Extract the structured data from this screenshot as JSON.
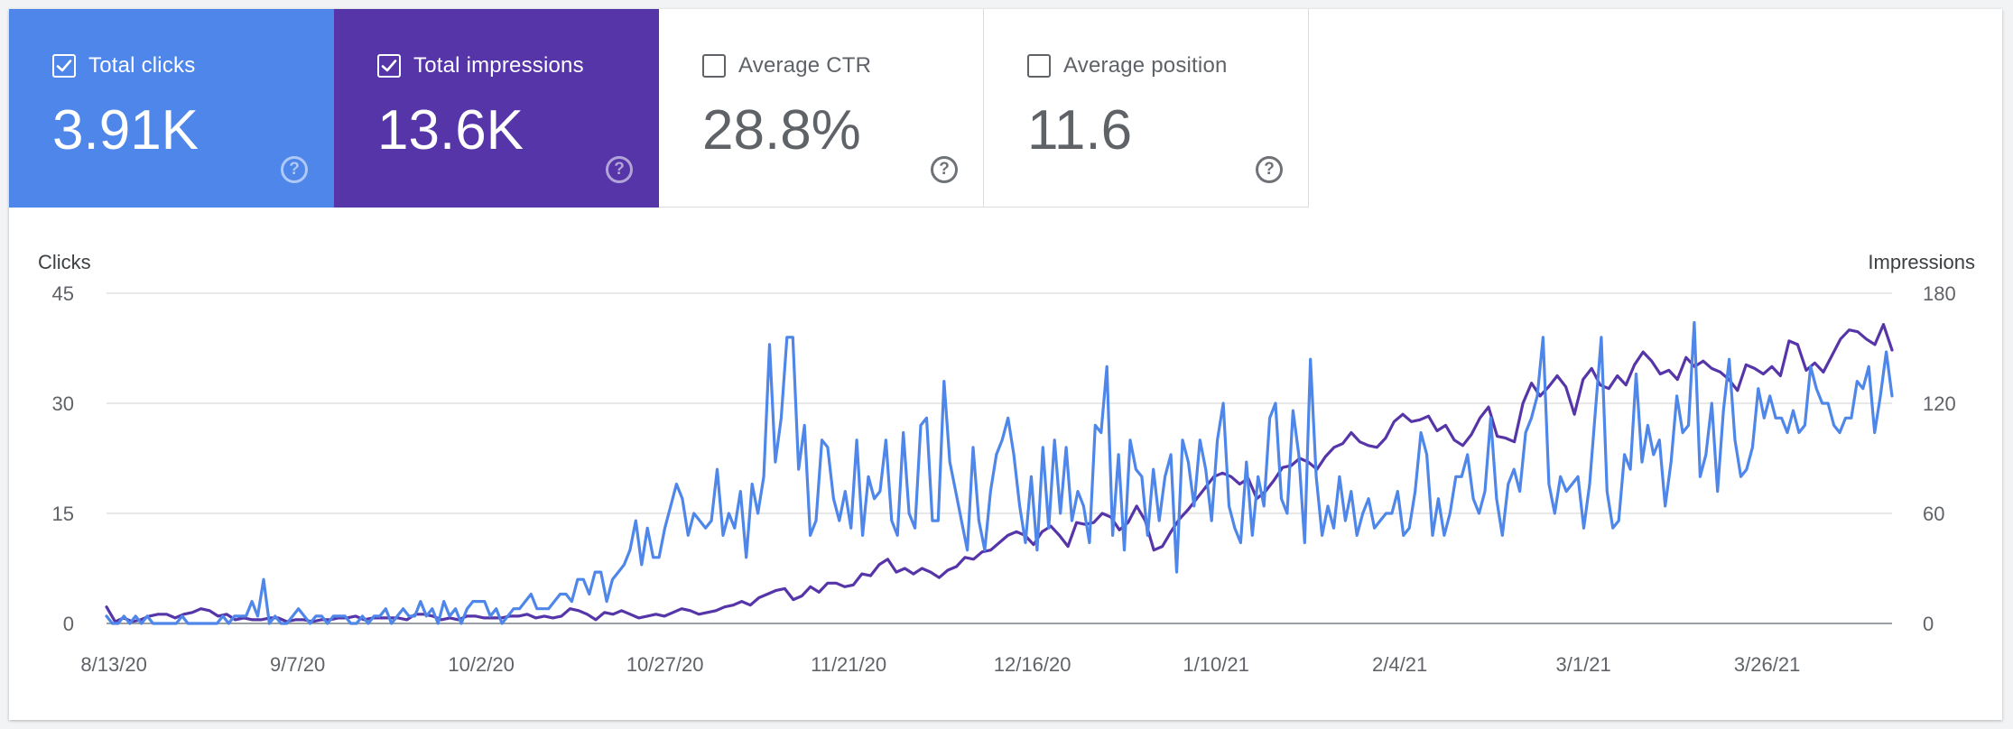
{
  "cards": [
    {
      "label": "Total clicks",
      "value": "3.91K",
      "checked": true
    },
    {
      "label": "Total impressions",
      "value": "13.6K",
      "checked": true
    },
    {
      "label": "Average CTR",
      "value": "28.8%",
      "checked": false
    },
    {
      "label": "Average position",
      "value": "11.6",
      "checked": false
    }
  ],
  "colors": {
    "clicks": "#4e86e9",
    "impressions": "#5635a9",
    "grid": "#e0e0e0",
    "baseline": "#9aa0a6"
  },
  "icons": {
    "checkbox": "check-icon",
    "help": "help-circle-icon"
  },
  "chart_data": {
    "type": "line",
    "xlabels": [
      "8/13/20",
      "9/7/20",
      "10/2/20",
      "10/27/20",
      "11/21/20",
      "12/16/20",
      "1/10/21",
      "2/4/21",
      "3/1/21",
      "3/26/21"
    ],
    "ylabel_left": "Clicks",
    "ylabel_right": "Impressions",
    "yticks_left": [
      "0",
      "15",
      "30",
      "45"
    ],
    "yticks_right": [
      "0",
      "60",
      "120",
      "180"
    ],
    "ylim_left": [
      0,
      45
    ],
    "ylim_right": [
      0,
      180
    ],
    "grid": true,
    "date_range": [
      "8/13/20",
      "4/13/21"
    ],
    "series": [
      {
        "name": "Total clicks",
        "axis": "left",
        "values": [
          1,
          0,
          0,
          1,
          0,
          1,
          0,
          1,
          0,
          0,
          0,
          0,
          0,
          1,
          0,
          0,
          0,
          0,
          0,
          0,
          1,
          0,
          1,
          1,
          1,
          3,
          1,
          6,
          0,
          1,
          0,
          0,
          1,
          2,
          1,
          0,
          1,
          1,
          0,
          1,
          1,
          1,
          0,
          0,
          1,
          0,
          1,
          1,
          2,
          0,
          1,
          2,
          1,
          1,
          3,
          1,
          2,
          0,
          3,
          1,
          2,
          0,
          2,
          3,
          3,
          3,
          1,
          2,
          0,
          1,
          2,
          2,
          3,
          4,
          2,
          2,
          2,
          3,
          4,
          4,
          3,
          6,
          6,
          4,
          7,
          7,
          3,
          6,
          7,
          8,
          10,
          14,
          8,
          13,
          9,
          9,
          13,
          16,
          19,
          17,
          12,
          15,
          14,
          13,
          14,
          21,
          12,
          15,
          13,
          18,
          9,
          19,
          15,
          20,
          38,
          22,
          28,
          39,
          39,
          21,
          27,
          12,
          14,
          25,
          24,
          17,
          14,
          18,
          13,
          25,
          12,
          20,
          17,
          18,
          25,
          14,
          12,
          26,
          15,
          13,
          27,
          28,
          14,
          14,
          33,
          22,
          18,
          14,
          10,
          24,
          14,
          10,
          18,
          23,
          25,
          28,
          23,
          16,
          11,
          20,
          10,
          24,
          13,
          25,
          15,
          24,
          14,
          18,
          16,
          11,
          27,
          26,
          35,
          12,
          23,
          10,
          25,
          21,
          20,
          12,
          21,
          14,
          20,
          23,
          7,
          25,
          22,
          16,
          25,
          21,
          14,
          25,
          30,
          16,
          13,
          11,
          22,
          12,
          20,
          16,
          28,
          30,
          17,
          15,
          29,
          23,
          11,
          36,
          20,
          12,
          16,
          13,
          20,
          14,
          18,
          12,
          15,
          17,
          13,
          14,
          15,
          15,
          18,
          12,
          13,
          18,
          26,
          23,
          12,
          17,
          12,
          15,
          20,
          20,
          23,
          17,
          15,
          18,
          28,
          17,
          12,
          19,
          21,
          18,
          26,
          28,
          31,
          39,
          19,
          15,
          20,
          18,
          19,
          20,
          13,
          19,
          29,
          39,
          18,
          13,
          14,
          23,
          21,
          34,
          22,
          27,
          23,
          25,
          16,
          22,
          31,
          26,
          27,
          41,
          20,
          23,
          30,
          18,
          29,
          36,
          25,
          20,
          21,
          24,
          32,
          28,
          31,
          28,
          28,
          26,
          29,
          26,
          27,
          35,
          32,
          30,
          30,
          27,
          26,
          28,
          28,
          33,
          32,
          35,
          26,
          31,
          37,
          31
        ]
      },
      {
        "name": "Total impressions",
        "axis": "right",
        "values": [
          9,
          1,
          3,
          1,
          2,
          4,
          5,
          5,
          3,
          5,
          6,
          8,
          7,
          4,
          5,
          2,
          3,
          2,
          2,
          3,
          3,
          1,
          2,
          2,
          1,
          2,
          2,
          3,
          3,
          4,
          2,
          3,
          3,
          3,
          3,
          2,
          5,
          5,
          4,
          2,
          3,
          2,
          4,
          4,
          3,
          3,
          3,
          4,
          4,
          5,
          3,
          4,
          3,
          4,
          8,
          7,
          5,
          2,
          6,
          5,
          7,
          5,
          3,
          4,
          5,
          4,
          6,
          8,
          7,
          5,
          6,
          7,
          9,
          10,
          12,
          10,
          14,
          16,
          18,
          19,
          13,
          15,
          20,
          17,
          22,
          22,
          20,
          21,
          27,
          26,
          32,
          35,
          28,
          30,
          27,
          30,
          28,
          25,
          29,
          31,
          36,
          35,
          39,
          40,
          44,
          48,
          50,
          48,
          43,
          50,
          53,
          48,
          42,
          55,
          54,
          55,
          60,
          58,
          51,
          55,
          64,
          56,
          40,
          42,
          50,
          57,
          62,
          68,
          74,
          80,
          82,
          80,
          76,
          79,
          68,
          72,
          78,
          85,
          86,
          90,
          88,
          84,
          91,
          96,
          98,
          104,
          99,
          97,
          96,
          101,
          110,
          114,
          110,
          111,
          113,
          105,
          108,
          100,
          97,
          103,
          112,
          118,
          102,
          101,
          99,
          120,
          131,
          124,
          129,
          135,
          129,
          114,
          133,
          139,
          130,
          128,
          135,
          130,
          141,
          148,
          143,
          136,
          138,
          133,
          145,
          140,
          143,
          139,
          137,
          133,
          127,
          141,
          139,
          136,
          140,
          135,
          154,
          152,
          138,
          142,
          137,
          146,
          155,
          160,
          159,
          155,
          152,
          163,
          149
        ]
      }
    ]
  }
}
